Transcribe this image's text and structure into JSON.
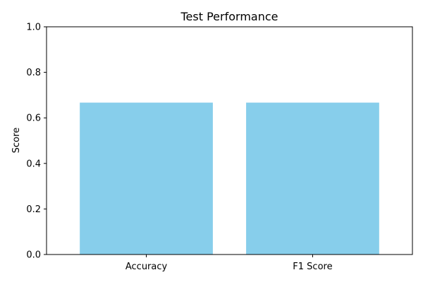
{
  "chart_data": {
    "type": "bar",
    "title": "Test Performance",
    "xlabel": "",
    "ylabel": "Score",
    "categories": [
      "Accuracy",
      "F1 Score"
    ],
    "values": [
      0.667,
      0.667
    ],
    "ylim": [
      0,
      1.0
    ],
    "yticks": [
      "0.0",
      "0.2",
      "0.4",
      "0.6",
      "0.8",
      "1.0"
    ],
    "bar_color": "#87ceeb",
    "grid": false,
    "legend": "none"
  }
}
